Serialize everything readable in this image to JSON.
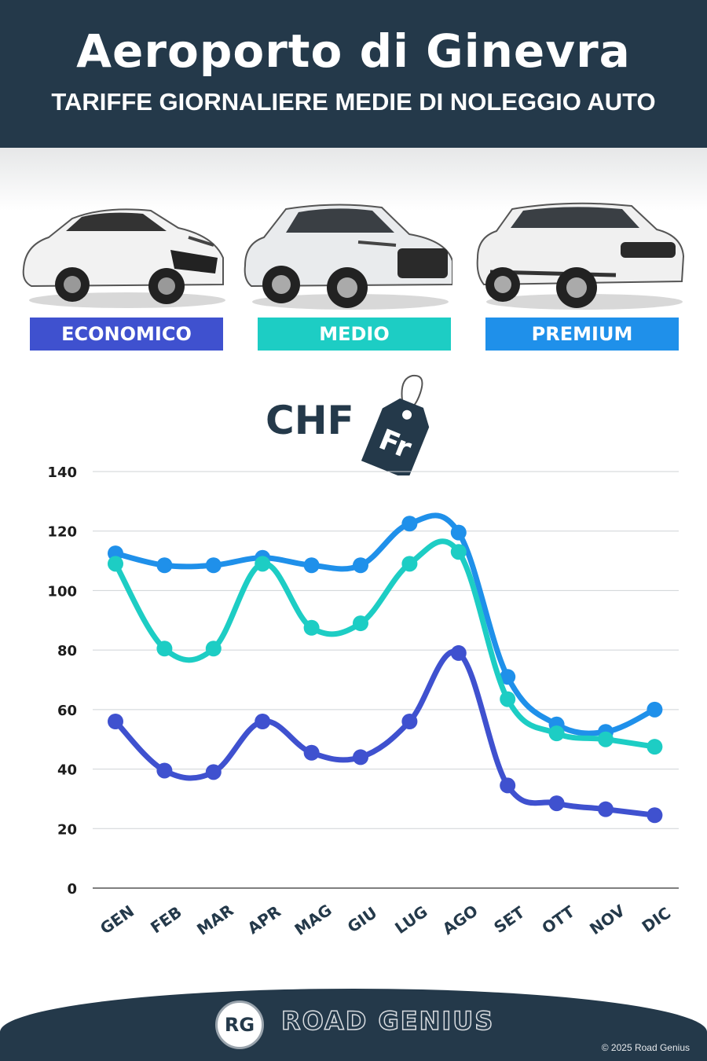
{
  "header": {
    "title": "Aeroporto di Ginevra",
    "subtitle": "TARIFFE GIORNALIERE MEDIE DI NOLEGGIO AUTO"
  },
  "categories": [
    {
      "label": "ECONOMICO",
      "color": "#3f51cf",
      "car_icon": "hatchback-car-icon"
    },
    {
      "label": "MEDIO",
      "color": "#1dcdc4",
      "car_icon": "suv-car-icon"
    },
    {
      "label": "PREMIUM",
      "color": "#1f90ea",
      "car_icon": "luxury-suv-car-icon"
    }
  ],
  "currency": {
    "label": "CHF",
    "tag_text": "Fr"
  },
  "chart_data": {
    "type": "line",
    "categories": [
      "GEN",
      "FEB",
      "MAR",
      "APR",
      "MAG",
      "GIU",
      "LUG",
      "AGO",
      "SET",
      "OTT",
      "NOV",
      "DIC"
    ],
    "series": [
      {
        "name": "ECONOMICO",
        "color": "#3f51cf",
        "values": [
          56,
          39.5,
          39,
          56,
          45.5,
          44,
          56,
          79,
          34.5,
          28.5,
          26.5,
          24.5
        ]
      },
      {
        "name": "MEDIO",
        "color": "#1dcdc4",
        "values": [
          109,
          80.5,
          80.5,
          109,
          87.5,
          89,
          109,
          113,
          63.5,
          52,
          50,
          47.5
        ]
      },
      {
        "name": "PREMIUM",
        "color": "#1f90ea",
        "values": [
          112.5,
          108.5,
          108.5,
          111,
          108.5,
          108.5,
          122.5,
          119.5,
          71,
          55,
          52.5,
          60
        ]
      }
    ],
    "yticks": [
      0,
      20,
      40,
      60,
      80,
      100,
      120,
      140
    ],
    "ylim": [
      0,
      140
    ],
    "grid": true
  },
  "footer": {
    "logo_initials": "RG",
    "brand": "ROAD GENIUS",
    "copyright": "© 2025 Road Genius"
  }
}
